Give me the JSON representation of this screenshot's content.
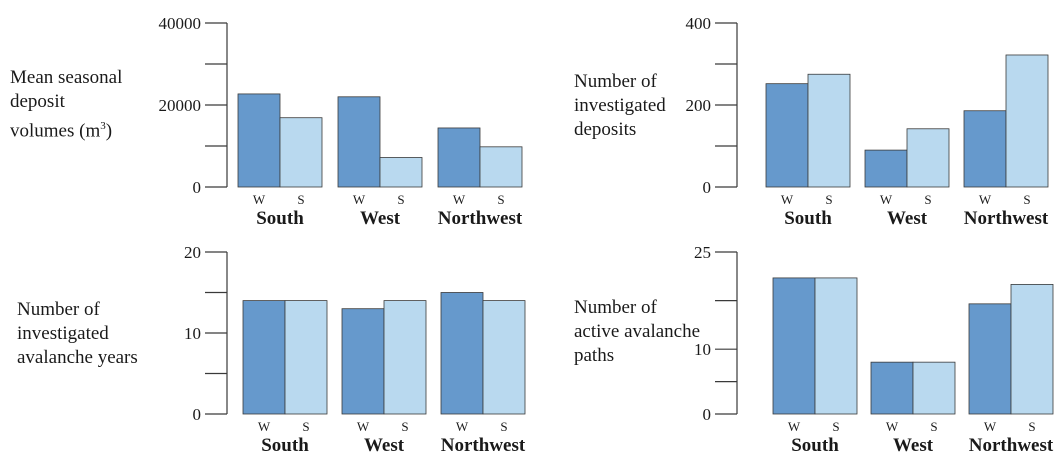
{
  "colors": {
    "winter": "#6699cc",
    "summer": "#b9d9ef",
    "stroke": "#3a3a3a"
  },
  "chart_data": [
    {
      "type": "bar",
      "ylabel_lines": [
        "Mean seasonal",
        "deposit",
        "volumes (m",
        ")"
      ],
      "ylabel_superscript": "3",
      "groups": [
        "South",
        "West",
        "Northwest"
      ],
      "bar_labels": [
        "W",
        "S"
      ],
      "ylim": [
        0,
        40000
      ],
      "yticks": [
        0,
        20000,
        40000
      ],
      "series": [
        {
          "name": "W",
          "values": [
            22700,
            22000,
            14400
          ]
        },
        {
          "name": "S",
          "values": [
            16900,
            7200,
            9800
          ]
        }
      ]
    },
    {
      "type": "bar",
      "ylabel_lines": [
        "Number of",
        "investigated",
        "deposits"
      ],
      "groups": [
        "South",
        "West",
        "Northwest"
      ],
      "bar_labels": [
        "W",
        "S"
      ],
      "ylim": [
        0,
        400
      ],
      "yticks": [
        0,
        200,
        400
      ],
      "series": [
        {
          "name": "W",
          "values": [
            252,
            90,
            186
          ]
        },
        {
          "name": "S",
          "values": [
            275,
            142,
            322
          ]
        }
      ]
    },
    {
      "type": "bar",
      "ylabel_lines": [
        "Number of",
        "investigated",
        "avalanche years"
      ],
      "groups": [
        "South",
        "West",
        "Northwest"
      ],
      "bar_labels": [
        "W",
        "S"
      ],
      "ylim": [
        0,
        20
      ],
      "yticks": [
        0,
        10,
        20
      ],
      "series": [
        {
          "name": "W",
          "values": [
            14,
            13,
            15
          ]
        },
        {
          "name": "S",
          "values": [
            14,
            14,
            14
          ]
        }
      ]
    },
    {
      "type": "bar",
      "ylabel_lines": [
        "Number of",
        "active avalanche",
        "paths"
      ],
      "groups": [
        "South",
        "West",
        "Northwest"
      ],
      "bar_labels": [
        "W",
        "S"
      ],
      "ylim": [
        0,
        25
      ],
      "yticks": [
        0,
        10,
        25
      ],
      "series": [
        {
          "name": "W",
          "values": [
            21,
            8,
            17
          ]
        },
        {
          "name": "S",
          "values": [
            21,
            8,
            20
          ]
        }
      ]
    }
  ]
}
